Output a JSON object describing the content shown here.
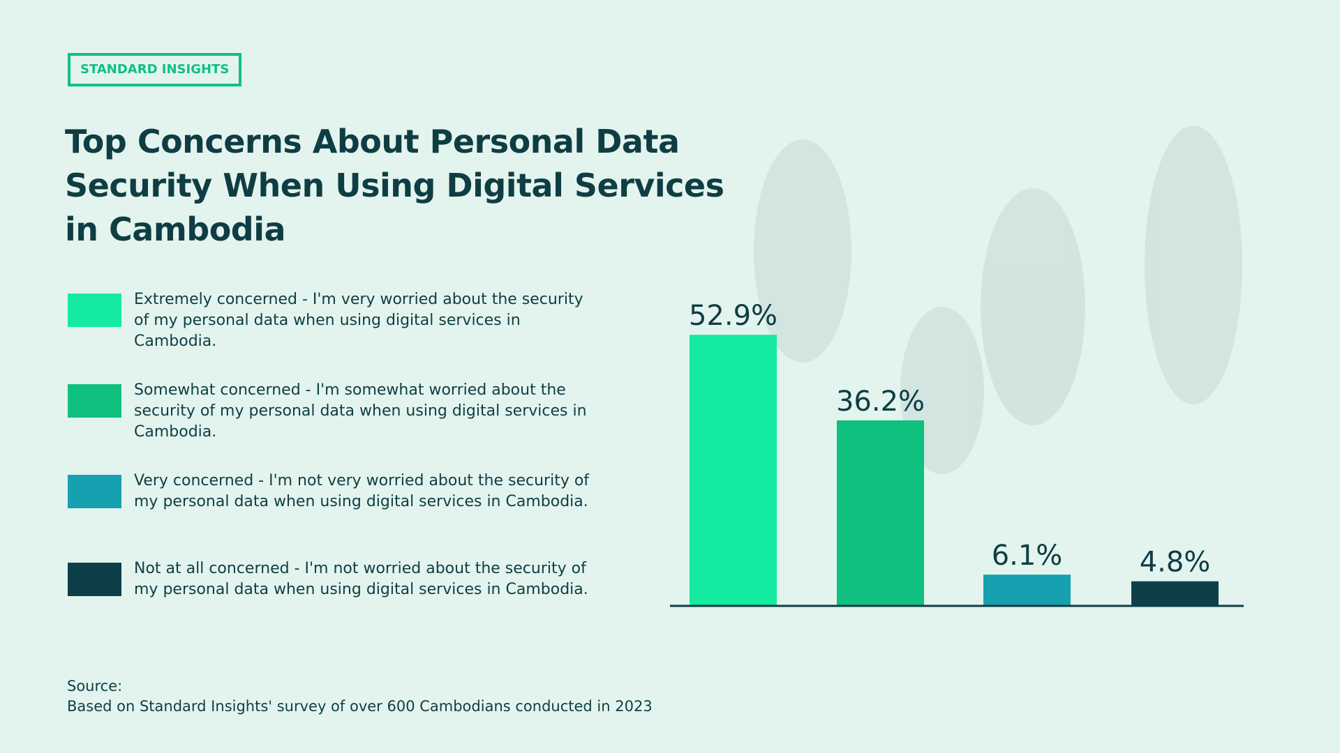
{
  "brand": "STANDARD INSIGHTS",
  "chart_data": {
    "type": "bar",
    "title": "Top Concerns About Personal Data Security When Using Digital Services in Cambodia",
    "categories": [
      "Extremely concerned - I'm very worried about the security of my personal data when using digital services in Cambodia.",
      "Somewhat concerned - I'm somewhat worried about the security of my personal data when using digital services in Cambodia.",
      "Very concerned - I'm not very worried about the security of my personal data when using digital services in Cambodia.",
      "Not at all concerned - I'm not worried about the security of my personal data when using digital services in Cambodia."
    ],
    "values": [
      52.9,
      36.2,
      6.1,
      4.8
    ],
    "value_labels": [
      "52.9%",
      "36.2%",
      "6.1%",
      "4.8%"
    ],
    "colors": [
      "#14eba0",
      "#10c07f",
      "#17a0b0",
      "#0e3f48"
    ]
  },
  "source": {
    "label": "Source:",
    "text": "Based on Standard Insights' survey of over 600 Cambodians conducted in 2023"
  }
}
